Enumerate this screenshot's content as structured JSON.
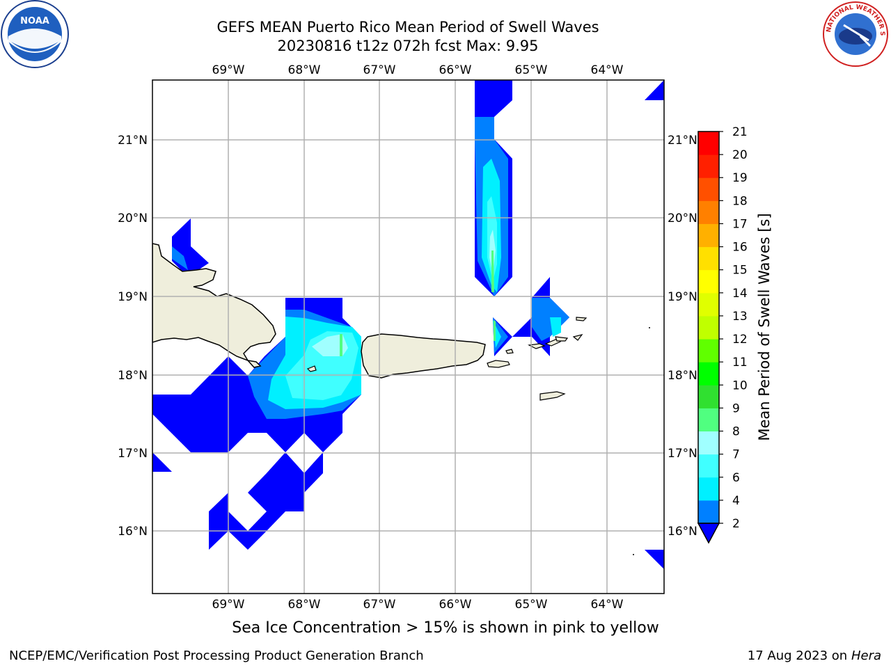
{
  "title_line1": "GEFS MEAN Puerto Rico Mean Period of Swell Waves",
  "title_line2": "20230816 t12z 072h fcst   Max: 9.95",
  "subtitle": "Sea Ice Concentration > 15% is shown in pink to yellow",
  "footer_left": "NCEP/EMC/Verification Post Processing Product Generation Branch",
  "footer_date": "17 Aug 2023 on",
  "footer_host": "Hera",
  "logos": {
    "left": "NOAA",
    "right": "NATIONAL WEATHER SERVICE"
  },
  "map": {
    "lon_labels": [
      "69°W",
      "68°W",
      "67°W",
      "66°W",
      "65°W",
      "64°W"
    ],
    "lat_labels": [
      "21°N",
      "20°N",
      "19°N",
      "18°N",
      "17°N",
      "16°N"
    ],
    "land_color": "#efeedc",
    "grid_color": "#b0b0b0"
  },
  "colorbar": {
    "label": "Mean Period of Swell Waves [s]",
    "ticks": [
      "2",
      "4",
      "6",
      "7",
      "8",
      "9",
      "10",
      "11",
      "12",
      "13",
      "14",
      "15",
      "16",
      "17",
      "18",
      "19",
      "20",
      "21"
    ],
    "colors": [
      "#0000ff",
      "#0080ff",
      "#00f0ff",
      "#40ffff",
      "#a0ffff",
      "#50ff80",
      "#30e030",
      "#00ff00",
      "#60ff00",
      "#c0ff00",
      "#e0ff00",
      "#ffff00",
      "#ffe000",
      "#ffb000",
      "#ff8000",
      "#ff5000",
      "#ff2000",
      "#ff0000"
    ]
  }
}
